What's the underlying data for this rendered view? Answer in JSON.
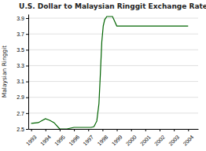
{
  "chart_data": {
    "type": "line",
    "title": "U.S. Dollar to Malaysian Ringgit Exchange Rate",
    "y_label": "Malaysian Ringgit",
    "color": "#006400",
    "grid": true,
    "x": [
      1993,
      1993.5,
      1994.0,
      1994.3,
      1994.6,
      1995.0,
      1995.5,
      1996.0,
      1996.5,
      1997.0,
      1997.2,
      1997.4,
      1997.6,
      1997.75,
      1997.85,
      1997.95,
      1998.05,
      1998.15,
      1998.3,
      1998.5,
      1998.7,
      1999.0,
      1999.5,
      2000,
      2001,
      2002,
      2003,
      2004
    ],
    "values": [
      2.57,
      2.58,
      2.63,
      2.61,
      2.58,
      2.5,
      2.5,
      2.52,
      2.52,
      2.52,
      2.52,
      2.53,
      2.6,
      2.82,
      3.2,
      3.6,
      3.8,
      3.88,
      3.92,
      3.92,
      3.92,
      3.8,
      3.8,
      3.8,
      3.8,
      3.8,
      3.8,
      3.8
    ],
    "xlim": [
      1992.8,
      2004.7
    ],
    "xticks": [
      1993,
      1994,
      1995,
      1996,
      1997,
      1998,
      1999,
      2000,
      2001,
      2002,
      2003,
      2004
    ],
    "ylim": [
      2.5,
      3.95
    ],
    "yticks": [
      2.5,
      2.7,
      2.9,
      3.1,
      3.3,
      3.5,
      3.7,
      3.9
    ]
  }
}
